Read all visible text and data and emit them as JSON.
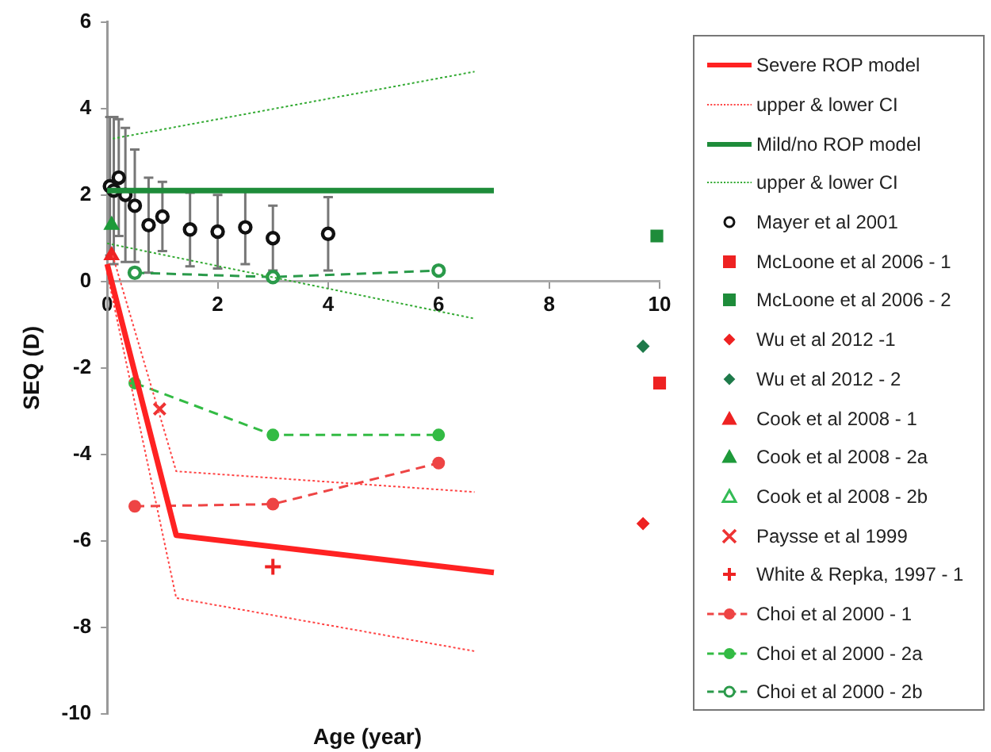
{
  "chart_data": {
    "type": "scatter",
    "xlabel": "Age (year)",
    "ylabel": "SEQ (D)",
    "xlim": [
      0,
      10
    ],
    "ylim": [
      -10,
      6
    ],
    "xticks": [
      0,
      2,
      4,
      6,
      8,
      10
    ],
    "yticks": [
      -10,
      -8,
      -6,
      -4,
      -2,
      0,
      2,
      4,
      6
    ],
    "grid": false,
    "legend": "right",
    "series": [
      {
        "type": "line",
        "name": "Severe ROP model",
        "color": "#ff2222",
        "line_style": "solid",
        "marker": "none",
        "x": [
          0,
          1.25,
          7
        ],
        "values": [
          0.4,
          -5.87,
          -6.73
        ]
      },
      {
        "type": "line",
        "name": "upper & lower CI",
        "color": "#ff4444",
        "line_style": "dotted",
        "marker": "none",
        "x": [
          0.1,
          1.25,
          6.65
        ],
        "values": [
          0.6,
          -4.39,
          -4.87
        ]
      },
      {
        "type": "line",
        "color": "#ff4444",
        "line_style": "dotted",
        "marker": "none",
        "x": [
          0,
          1.25,
          6.65
        ],
        "values": [
          0.2,
          -7.32,
          -8.55
        ]
      },
      {
        "type": "line",
        "name": "Mild/no ROP model",
        "color": "#1e8c3a",
        "line_style": "solid",
        "marker": "none",
        "x": [
          0,
          7
        ],
        "values": [
          2.1,
          2.1
        ]
      },
      {
        "type": "line",
        "name": "upper & lower CI",
        "color": "#33aa33",
        "line_style": "dotted",
        "marker": "none",
        "x": [
          0.1,
          6.65
        ],
        "values": [
          3.3,
          4.85
        ]
      },
      {
        "type": "line",
        "color": "#33aa33",
        "line_style": "dotted",
        "marker": "none",
        "x": [
          0,
          6.65
        ],
        "values": [
          0.88,
          -0.86
        ]
      },
      {
        "type": "scatter",
        "name": "Mayer et al 2001",
        "color": "#111111",
        "marker": "circle-open",
        "x": [
          0.05,
          0.12,
          0.21,
          0.33,
          0.5,
          0.75,
          1,
          1.5,
          2,
          2.5,
          3,
          4
        ],
        "values": [
          2.2,
          2.1,
          2.4,
          2,
          1.75,
          1.3,
          1.5,
          1.2,
          1.15,
          1.25,
          1,
          1.1
        ],
        "errors": [
          1.6,
          1.7,
          1.35,
          1.55,
          1.3,
          1.1,
          0.8,
          0.85,
          0.85,
          0.85,
          0.75,
          0.85
        ]
      },
      {
        "type": "scatter",
        "name": "McLoone et al 2006 - 1",
        "color": "#ee2222",
        "marker": "square",
        "x": [
          10
        ],
        "values": [
          -2.35
        ]
      },
      {
        "type": "scatter",
        "name": "McLoone et al 2006 - 2",
        "color": "#1e8c3a",
        "marker": "square",
        "x": [
          9.95
        ],
        "values": [
          1.05
        ]
      },
      {
        "type": "scatter",
        "name": "Wu et al 2012 -1",
        "color": "#ee2222",
        "marker": "diamond",
        "x": [
          9.7
        ],
        "values": [
          -5.6
        ]
      },
      {
        "type": "scatter",
        "name": "Wu et al 2012 - 2",
        "color": "#1e7a4a",
        "marker": "diamond",
        "x": [
          9.7
        ],
        "values": [
          -1.5
        ]
      },
      {
        "type": "scatter",
        "name": "Cook et al 2008 - 1",
        "color": "#ee2222",
        "marker": "triangle",
        "x": [
          0.08
        ],
        "values": [
          0.6
        ]
      },
      {
        "type": "scatter",
        "name": "Cook et al 2008 - 2a",
        "color": "#1e9a3a",
        "marker": "triangle",
        "x": [
          0.08
        ],
        "values": [
          1.3
        ]
      },
      {
        "type": "scatter",
        "name": "Cook et al 2008 - 2b",
        "color": "#33bb55",
        "marker": "triangle-open"
      },
      {
        "type": "scatter",
        "name": "Paysse et al 1999",
        "color": "#ee3333",
        "marker": "cross",
        "x": [
          0.95
        ],
        "values": [
          -2.95
        ]
      },
      {
        "type": "scatter",
        "name": "White & Repka, 1997 - 1",
        "color": "#ee2222",
        "marker": "plus",
        "x": [
          3
        ],
        "values": [
          -6.6
        ]
      },
      {
        "type": "line",
        "name": "Choi et al 2000 - 1",
        "color": "#ee4444",
        "line_style": "dashed",
        "marker": "circle",
        "x": [
          0.5,
          3,
          6
        ],
        "values": [
          -5.2,
          -5.15,
          -4.2
        ]
      },
      {
        "type": "line",
        "name": "Choi et al 2000 - 2a",
        "color": "#33bb44",
        "line_style": "dashed",
        "marker": "circle",
        "x": [
          0.5,
          3,
          6
        ],
        "values": [
          -2.35,
          -3.55,
          -3.55
        ]
      },
      {
        "type": "line",
        "name": "Choi et al 2000 - 2b",
        "color": "#2a9a4a",
        "line_style": "dashed",
        "marker": "circle-open",
        "x": [
          0.5,
          3,
          6
        ],
        "values": [
          0.2,
          0.1,
          0.25
        ]
      }
    ]
  }
}
